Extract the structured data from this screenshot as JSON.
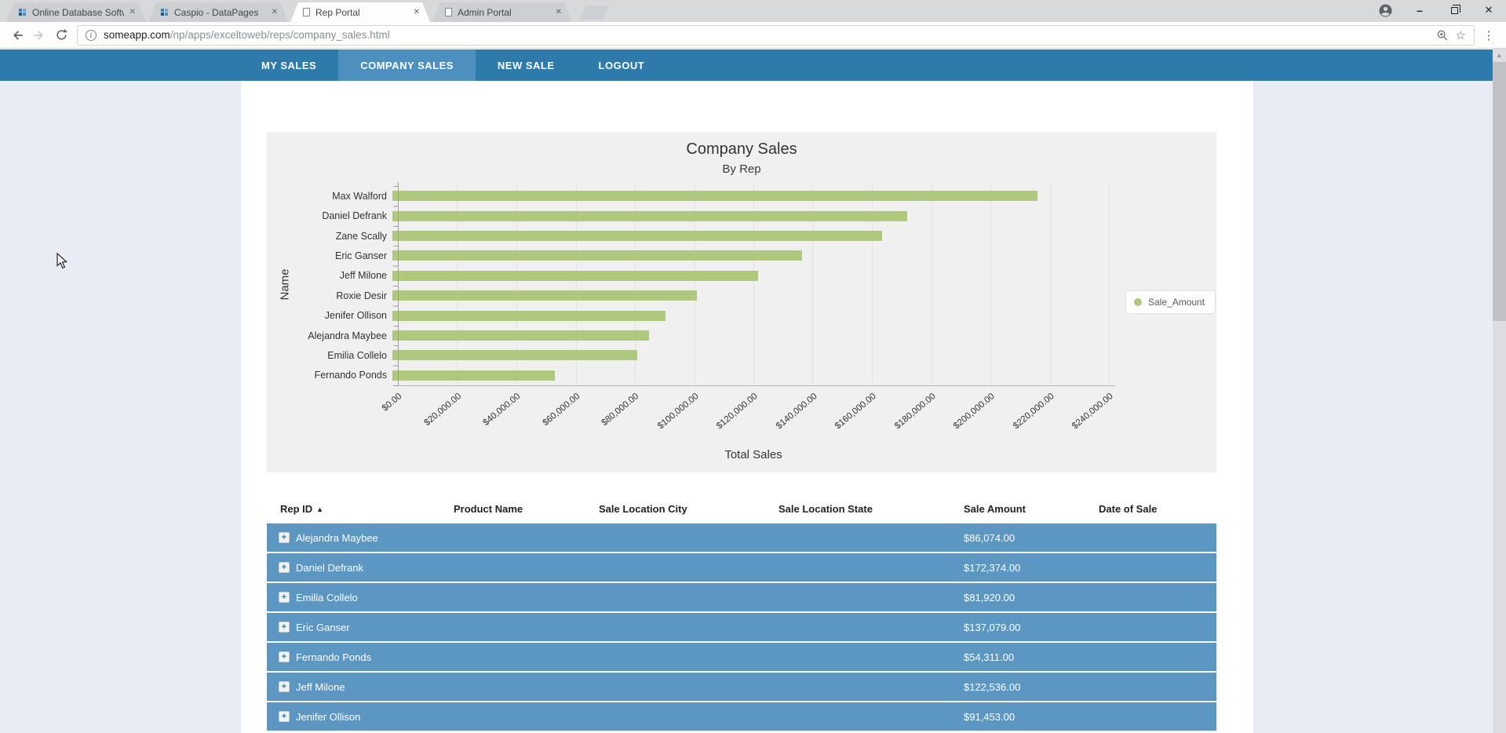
{
  "colors": {
    "nav": "#2e7bab",
    "nav-active": "#4d90bf",
    "row": "#5b97c0",
    "bar": "#aec87e",
    "panel": "#f1f0f1",
    "margin": "#e9ecf4"
  },
  "browser": {
    "tabs": [
      {
        "title": "Online Database Softwar",
        "icon": "caspio",
        "active": false
      },
      {
        "title": "Caspio - DataPages",
        "icon": "caspio",
        "active": false
      },
      {
        "title": "Rep Portal",
        "icon": "document",
        "active": true
      },
      {
        "title": "Admin Portal",
        "icon": "document",
        "active": false
      }
    ],
    "url": {
      "domain": "someapp.com",
      "path": "/np/apps/exceltoweb/reps/company_sales.html"
    }
  },
  "icons": {
    "tab_close": "✕",
    "minimize": "–",
    "close_window": "✕",
    "menu_dots": "⋮",
    "bookmark_star": "☆",
    "scroll_up": "▲",
    "sort_asc": "▲",
    "expand_plus": "+"
  },
  "nav": {
    "items": [
      {
        "label": "MY SALES",
        "active": false
      },
      {
        "label": "COMPANY SALES",
        "active": true
      },
      {
        "label": "NEW SALE",
        "active": false
      },
      {
        "label": "LOGOUT",
        "active": false
      }
    ]
  },
  "chart_data": {
    "type": "bar",
    "orientation": "horizontal",
    "title": "Company Sales",
    "subtitle": "By Rep",
    "xlabel": "Total Sales",
    "ylabel": "Name",
    "legend": [
      {
        "label": "Sale_Amount",
        "color": "#aec87e"
      }
    ],
    "legend_position": "right",
    "grid": true,
    "categories": [
      "Max Walford",
      "Daniel Defrank",
      "Zane Scally",
      "Eric Ganser",
      "Jeff Milone",
      "Roxie Desir",
      "Jenifer Ollison",
      "Alejandra Maybee",
      "Emilia Collelo",
      "Fernando Ponds"
    ],
    "values": [
      216000,
      172374,
      164000,
      137079,
      122536,
      102000,
      91453,
      86074,
      81920,
      54311
    ],
    "xmax": 240000,
    "tick_values": [
      0,
      20000,
      40000,
      60000,
      80000,
      100000,
      120000,
      140000,
      160000,
      180000,
      200000,
      220000,
      240000
    ],
    "tick_labels": [
      "$0.00",
      "$20,000.00",
      "$40,000.00",
      "$60,000.00",
      "$80,000.00",
      "$100,000.00",
      "$120,000.00",
      "$140,000.00",
      "$160,000.00",
      "$180,000.00",
      "$200,000.00",
      "$220,000.00",
      "$240,000.00"
    ]
  },
  "table": {
    "columns": [
      {
        "label": "Rep ID",
        "sorted": true
      },
      {
        "label": "Product Name",
        "sorted": false
      },
      {
        "label": "Sale Location City",
        "sorted": false
      },
      {
        "label": "Sale Location State",
        "sorted": false
      },
      {
        "label": "Sale Amount",
        "sorted": false
      },
      {
        "label": "Date of Sale",
        "sorted": false
      }
    ],
    "rows": [
      {
        "rep": "Alejandra Maybee",
        "amount": "$86,074.00"
      },
      {
        "rep": "Daniel Defrank",
        "amount": "$172,374.00"
      },
      {
        "rep": "Emilia Collelo",
        "amount": "$81,920.00"
      },
      {
        "rep": "Eric Ganser",
        "amount": "$137,079.00"
      },
      {
        "rep": "Fernando Ponds",
        "amount": "$54,311.00"
      },
      {
        "rep": "Jeff Milone",
        "amount": "$122,536.00"
      },
      {
        "rep": "Jenifer Ollison",
        "amount": "$91,453.00"
      }
    ]
  }
}
